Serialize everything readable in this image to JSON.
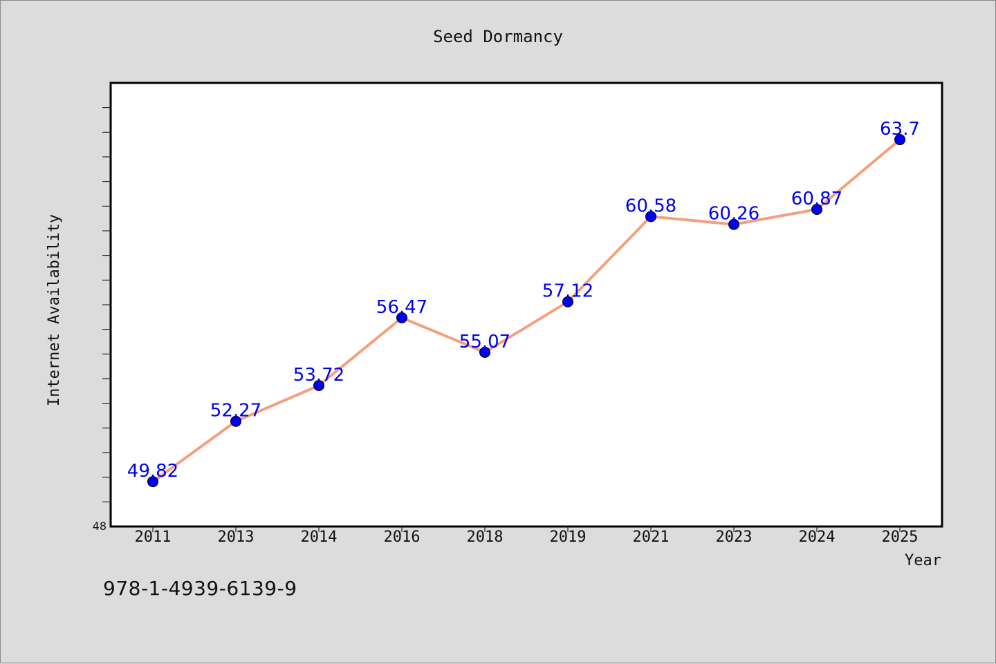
{
  "chart_data": {
    "type": "line",
    "title": "Seed Dormancy",
    "xlabel": "Year",
    "ylabel": "Internet Availability",
    "categories": [
      "2011",
      "2013",
      "2014",
      "2016",
      "2018",
      "2019",
      "2021",
      "2023",
      "2024",
      "2025"
    ],
    "series": [
      {
        "values": [
          49.82,
          52.27,
          53.72,
          56.47,
          55.07,
          57.12,
          60.58,
          60.26,
          60.87,
          63.7
        ]
      }
    ],
    "data_labels": [
      "49.82",
      "52.27",
      "53.72",
      "56.47",
      "55.07",
      "57.12",
      "60.58",
      "60.26",
      "60.87",
      "63.7"
    ],
    "y_tick_labels": [
      "48"
    ],
    "ylim": [
      48,
      66
    ],
    "grid": false,
    "line_color": "#f4a07f",
    "marker_color": "#0000ee",
    "label_color": "#0000ee"
  },
  "footer": {
    "code": "978-1-4939-6139-9"
  }
}
